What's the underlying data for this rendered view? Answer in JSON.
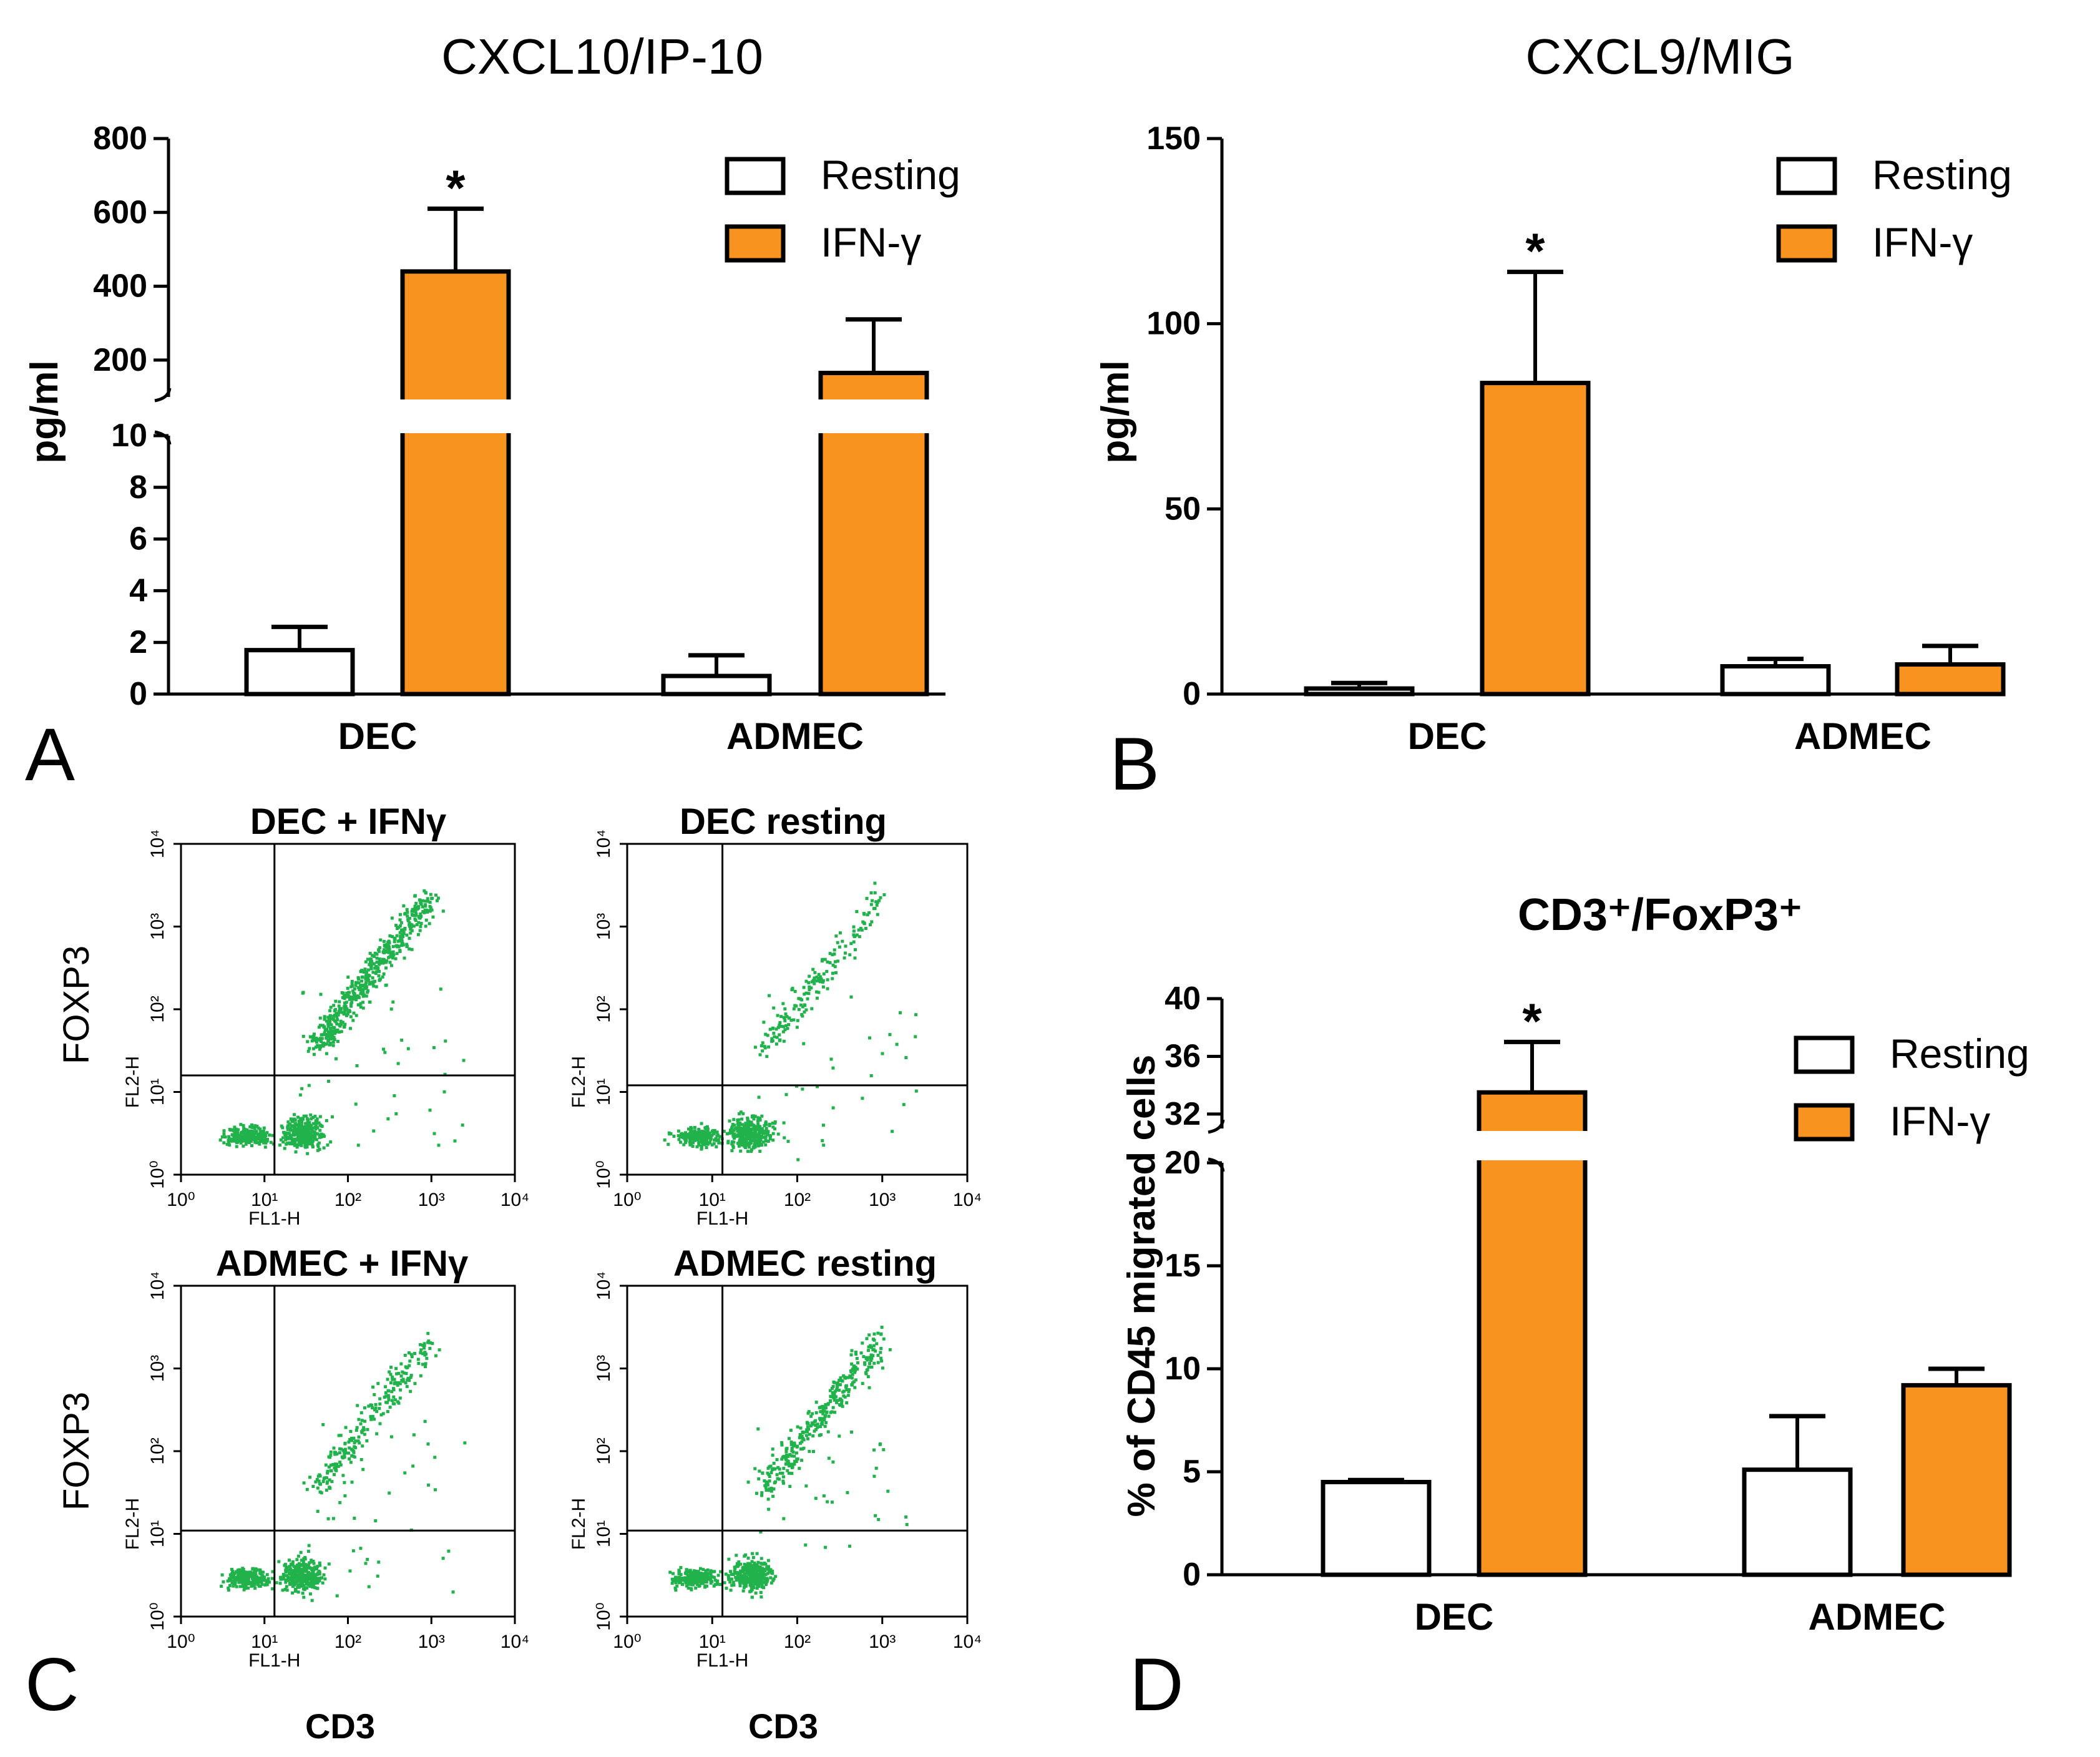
{
  "colors": {
    "resting": "#ffffff",
    "ifn": "#f7931e",
    "stroke": "#000000",
    "dots": "#22b24c"
  },
  "legend": {
    "resting": "Resting",
    "ifn": "IFN-γ"
  },
  "panel_letters": {
    "a": "A",
    "b": "B",
    "c": "C",
    "d": "D"
  },
  "flow": {
    "plots": [
      {
        "title": "DEC + IFNγ",
        "pattern": "diag"
      },
      {
        "title": "DEC resting",
        "pattern": "diag_sparse"
      },
      {
        "title": "ADMEC + IFNγ",
        "pattern": "diag_thin"
      },
      {
        "title": "ADMEC resting",
        "pattern": "diag_cluster"
      }
    ],
    "xlabel": "CD3",
    "ylabel": "FOXP3",
    "x_axis_name": "FL1-H",
    "y_axis_name": "FL2-H",
    "decade_ticks": [
      "10⁰",
      "10¹",
      "10²",
      "10³",
      "10⁴"
    ]
  },
  "chart_data": [
    {
      "id": "A",
      "type": "bar",
      "broken_axis": true,
      "title": "CXCL10/IP-10",
      "ylabel": "pg/ml",
      "xlabel": "",
      "categories": [
        "DEC",
        "ADMEC"
      ],
      "series": [
        {
          "name": "Resting",
          "values": [
            1.7,
            0.7
          ],
          "errors": [
            0.9,
            0.8
          ]
        },
        {
          "name": "IFN-γ",
          "values": [
            440,
            165
          ],
          "errors": [
            170,
            145
          ]
        }
      ],
      "lower_range": [
        0,
        10
      ],
      "lower_ticks": [
        0,
        2,
        4,
        6,
        8,
        10
      ],
      "upper_range": [
        100,
        800
      ],
      "upper_ticks": [
        200,
        400,
        600,
        800
      ],
      "annotations": [
        {
          "text": "*",
          "category": "DEC",
          "series": "IFN-γ"
        }
      ],
      "legend_position": "top-right"
    },
    {
      "id": "B",
      "type": "bar",
      "broken_axis": false,
      "title": "CXCL9/MIG",
      "ylabel": "pg/ml",
      "xlabel": "",
      "categories": [
        "DEC",
        "ADMEC"
      ],
      "series": [
        {
          "name": "Resting",
          "values": [
            1.5,
            7.5
          ],
          "errors": [
            1.5,
            2
          ]
        },
        {
          "name": "IFN-γ",
          "values": [
            84,
            8
          ],
          "errors": [
            30,
            5
          ]
        }
      ],
      "ylim": [
        0,
        150
      ],
      "yticks": [
        0,
        50,
        100,
        150
      ],
      "annotations": [
        {
          "text": "*",
          "category": "DEC",
          "series": "IFN-γ"
        }
      ],
      "legend_position": "top-right"
    },
    {
      "id": "D",
      "type": "bar",
      "broken_axis": true,
      "title": "CD3⁺/FoxP3⁺",
      "ylabel": "% of CD45 migrated cells",
      "xlabel": "",
      "categories": [
        "DEC",
        "ADMEC"
      ],
      "series": [
        {
          "name": "Resting",
          "values": [
            4.5,
            5.1
          ],
          "errors": [
            0.1,
            2.6
          ]
        },
        {
          "name": "IFN-γ",
          "values": [
            33.5,
            9.2
          ],
          "errors": [
            3.5,
            0.8
          ]
        }
      ],
      "lower_range": [
        0,
        20
      ],
      "lower_ticks": [
        0,
        5,
        10,
        15,
        20
      ],
      "upper_range": [
        31,
        40
      ],
      "upper_ticks": [
        32,
        36,
        40
      ],
      "annotations": [
        {
          "text": "*",
          "category": "DEC",
          "series": "IFN-γ"
        }
      ],
      "legend_position": "top-right"
    }
  ]
}
